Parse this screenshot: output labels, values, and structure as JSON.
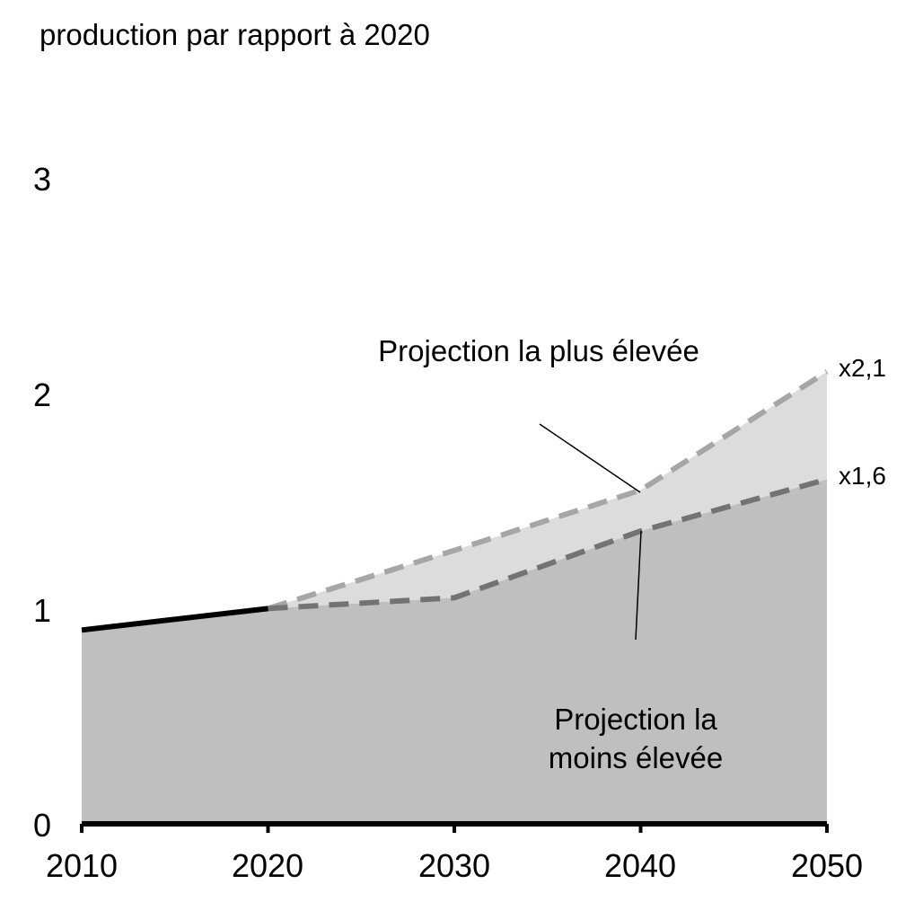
{
  "chart_data": {
    "type": "area",
    "ylabel": "production par rapport à 2020",
    "xlabel": "",
    "xlim": [
      2010,
      2050
    ],
    "ylim": [
      0,
      3
    ],
    "x_ticks": [
      "2010",
      "2020",
      "2030",
      "2040",
      "2050"
    ],
    "y_ticks": [
      "0",
      "1",
      "2",
      "3"
    ],
    "grid": false,
    "series": [
      {
        "style": "solid",
        "x": [
          2010,
          2020
        ],
        "y": [
          0.9,
          1.0
        ]
      },
      {
        "name": "Projection la plus élevée",
        "style": "dashed",
        "x": [
          2020,
          2030,
          2040,
          2050
        ],
        "y": [
          1.0,
          1.27,
          1.55,
          2.1
        ]
      },
      {
        "name": "Projection la moins élevée",
        "style": "dashed",
        "x": [
          2020,
          2030,
          2040,
          2050
        ],
        "y": [
          1.0,
          1.05,
          1.36,
          1.6
        ]
      }
    ],
    "annotations": {
      "high_label": "Projection la plus élevée",
      "low_label_line1": "Projection la",
      "low_label_line2": "moins élevée",
      "high_end": "x2,1",
      "low_end": "x1,6"
    },
    "colors": {
      "historical": "#000000",
      "low_area": "#bfbfbf",
      "high_area": "#dcdcdc",
      "high_line": "#a6a6a6",
      "low_line": "#737373"
    }
  }
}
